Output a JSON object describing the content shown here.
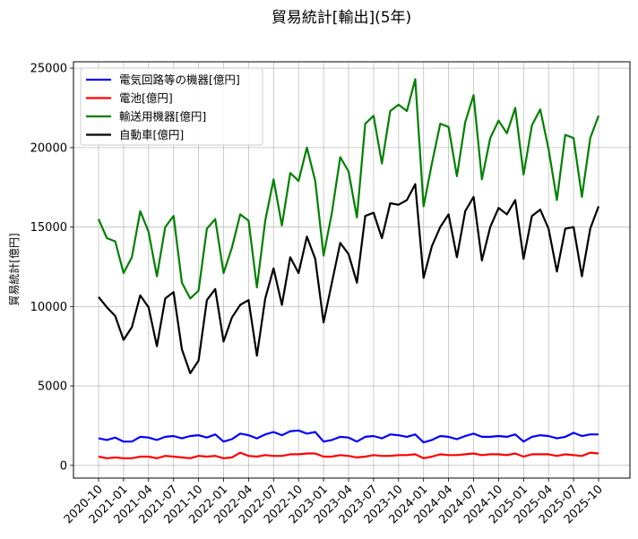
{
  "chart_data": {
    "type": "line",
    "title": "貿易統計[輸出](5年)",
    "xlabel": "",
    "ylabel": "貿易統計[億円]",
    "ylim": [
      -800,
      25400
    ],
    "yticks": [
      0,
      5000,
      10000,
      15000,
      20000,
      25000
    ],
    "xticks": [
      "2020-10",
      "2021-01",
      "2021-04",
      "2021-07",
      "2021-10",
      "2022-01",
      "2022-04",
      "2022-07",
      "2022-10",
      "2023-01",
      "2023-04",
      "2023-07",
      "2023-10",
      "2024-01",
      "2024-04",
      "2024-07",
      "2024-10",
      "2025-01",
      "2025-04",
      "2025-07",
      "2025-10"
    ],
    "grid": true,
    "legend_position": "top-left",
    "x_start": "2020-10",
    "series": [
      {
        "name": "電気回路等の機器[億円]",
        "color": "#0000ff",
        "values": [
          1700,
          1600,
          1750,
          1500,
          1500,
          1800,
          1750,
          1600,
          1800,
          1850,
          1700,
          1850,
          1900,
          1750,
          1950,
          1500,
          1650,
          2000,
          1900,
          1700,
          1950,
          2100,
          1900,
          2150,
          2200,
          2000,
          2100,
          1500,
          1600,
          1800,
          1750,
          1500,
          1800,
          1850,
          1700,
          1950,
          1900,
          1800,
          1950,
          1450,
          1600,
          1850,
          1800,
          1650,
          1850,
          2000,
          1800,
          1800,
          1850,
          1800,
          1950,
          1500,
          1800,
          1900,
          1850,
          1700,
          1800,
          2050,
          1850,
          1950,
          1950
        ]
      },
      {
        "name": "電池[億円]",
        "color": "#ff0000",
        "values": [
          550,
          450,
          500,
          450,
          450,
          550,
          550,
          450,
          600,
          550,
          500,
          450,
          600,
          550,
          600,
          450,
          500,
          800,
          600,
          550,
          650,
          600,
          600,
          700,
          700,
          750,
          750,
          550,
          550,
          650,
          600,
          500,
          550,
          650,
          600,
          600,
          650,
          650,
          700,
          450,
          550,
          700,
          650,
          650,
          700,
          750,
          650,
          700,
          700,
          650,
          750,
          550,
          700,
          700,
          700,
          600,
          700,
          650,
          600,
          800,
          750
        ]
      },
      {
        "name": "輸送用機器[億円]",
        "color": "#008000",
        "values": [
          15500,
          14300,
          14100,
          12100,
          13100,
          16000,
          14700,
          11900,
          15000,
          15700,
          11500,
          10500,
          11000,
          14900,
          15500,
          12100,
          13700,
          15800,
          15400,
          11200,
          15400,
          18000,
          15100,
          18400,
          17900,
          20000,
          17900,
          13200,
          15900,
          19400,
          18500,
          15600,
          21500,
          22000,
          19000,
          22300,
          22700,
          22300,
          24300,
          16300,
          19000,
          21500,
          21300,
          18200,
          21600,
          23300,
          18000,
          20600,
          21700,
          20900,
          22500,
          18300,
          21400,
          22400,
          19900,
          16700,
          20800,
          20600,
          16900,
          20600,
          22000
        ]
      },
      {
        "name": "自動車[億円]",
        "color": "#000000",
        "values": [
          10600,
          9950,
          9400,
          7900,
          8700,
          10700,
          9950,
          7500,
          10500,
          10900,
          7300,
          5800,
          6600,
          10400,
          11100,
          7800,
          9300,
          10100,
          10400,
          6900,
          10500,
          12400,
          10100,
          13100,
          12100,
          14400,
          13000,
          9000,
          11500,
          14000,
          13300,
          11500,
          15700,
          15900,
          14300,
          16500,
          16400,
          16700,
          17700,
          11800,
          13800,
          15000,
          15800,
          13100,
          16000,
          16900,
          12900,
          15000,
          16200,
          15800,
          16700,
          13000,
          15700,
          16100,
          14900,
          12200,
          14900,
          15000,
          11900,
          14900,
          16300
        ]
      }
    ]
  }
}
